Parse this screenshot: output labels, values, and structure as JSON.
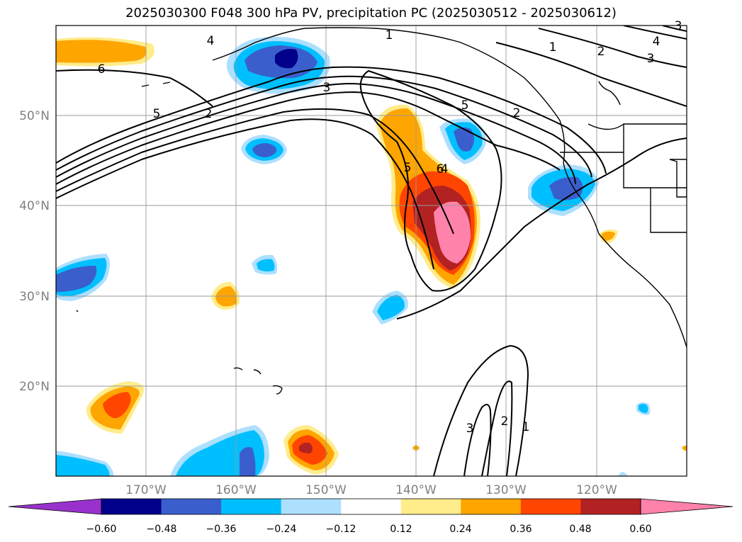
{
  "title": "2025030300 F048 300 hPa PV, precipitation PC (2025030512 - 2025030612)",
  "map": {
    "projection": "plate-carree",
    "lon_range": [
      -180,
      -110
    ],
    "lat_range": [
      10,
      60
    ],
    "lat_labels": [
      "50°N",
      "40°N",
      "30°N",
      "20°N"
    ],
    "lon_labels": [
      "170°W",
      "160°W",
      "150°W",
      "140°W",
      "130°W",
      "120°W"
    ]
  },
  "colorbar": {
    "ticks": [
      "−0.60",
      "−0.48",
      "−0.36",
      "−0.24",
      "−0.12",
      "0.12",
      "0.24",
      "0.36",
      "0.48",
      "0.60"
    ],
    "colors": [
      "#9932CC",
      "#00008B",
      "#3A5FCD",
      "#00BFFF",
      "#ADDFFF",
      "#FFFFFF",
      "#FFEC8B",
      "#FFA500",
      "#FF4500",
      "#B22222",
      "#FF82AB"
    ]
  },
  "contour_labels": [
    "1",
    "2",
    "3",
    "4",
    "5",
    "6",
    "1",
    "2",
    "3",
    "4",
    "5",
    "2",
    "3",
    "1",
    "2",
    "3",
    "4",
    "5",
    "6"
  ]
}
